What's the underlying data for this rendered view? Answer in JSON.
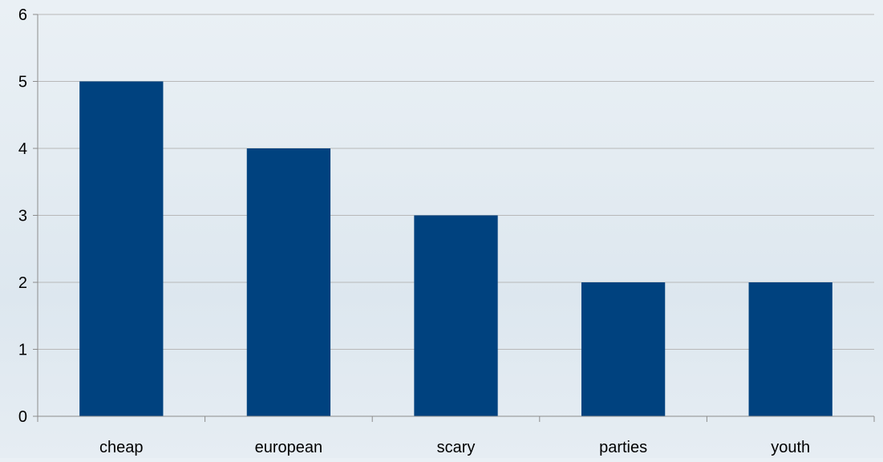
{
  "chart_data": {
    "type": "bar",
    "title": "",
    "xlabel": "",
    "ylabel": "",
    "categories": [
      "cheap",
      "european",
      "scary",
      "parties",
      "youth"
    ],
    "values": [
      5,
      4,
      3,
      2,
      2
    ],
    "ylim": [
      0,
      6
    ],
    "yticks": [
      "0",
      "1",
      "2",
      "3",
      "4",
      "5",
      "6"
    ],
    "grid": true,
    "legend": "none",
    "bar_color": "#00427f",
    "grid_color": "#b8b8b8",
    "axis_color": "#8c8c8c",
    "text_color": "#000000"
  }
}
